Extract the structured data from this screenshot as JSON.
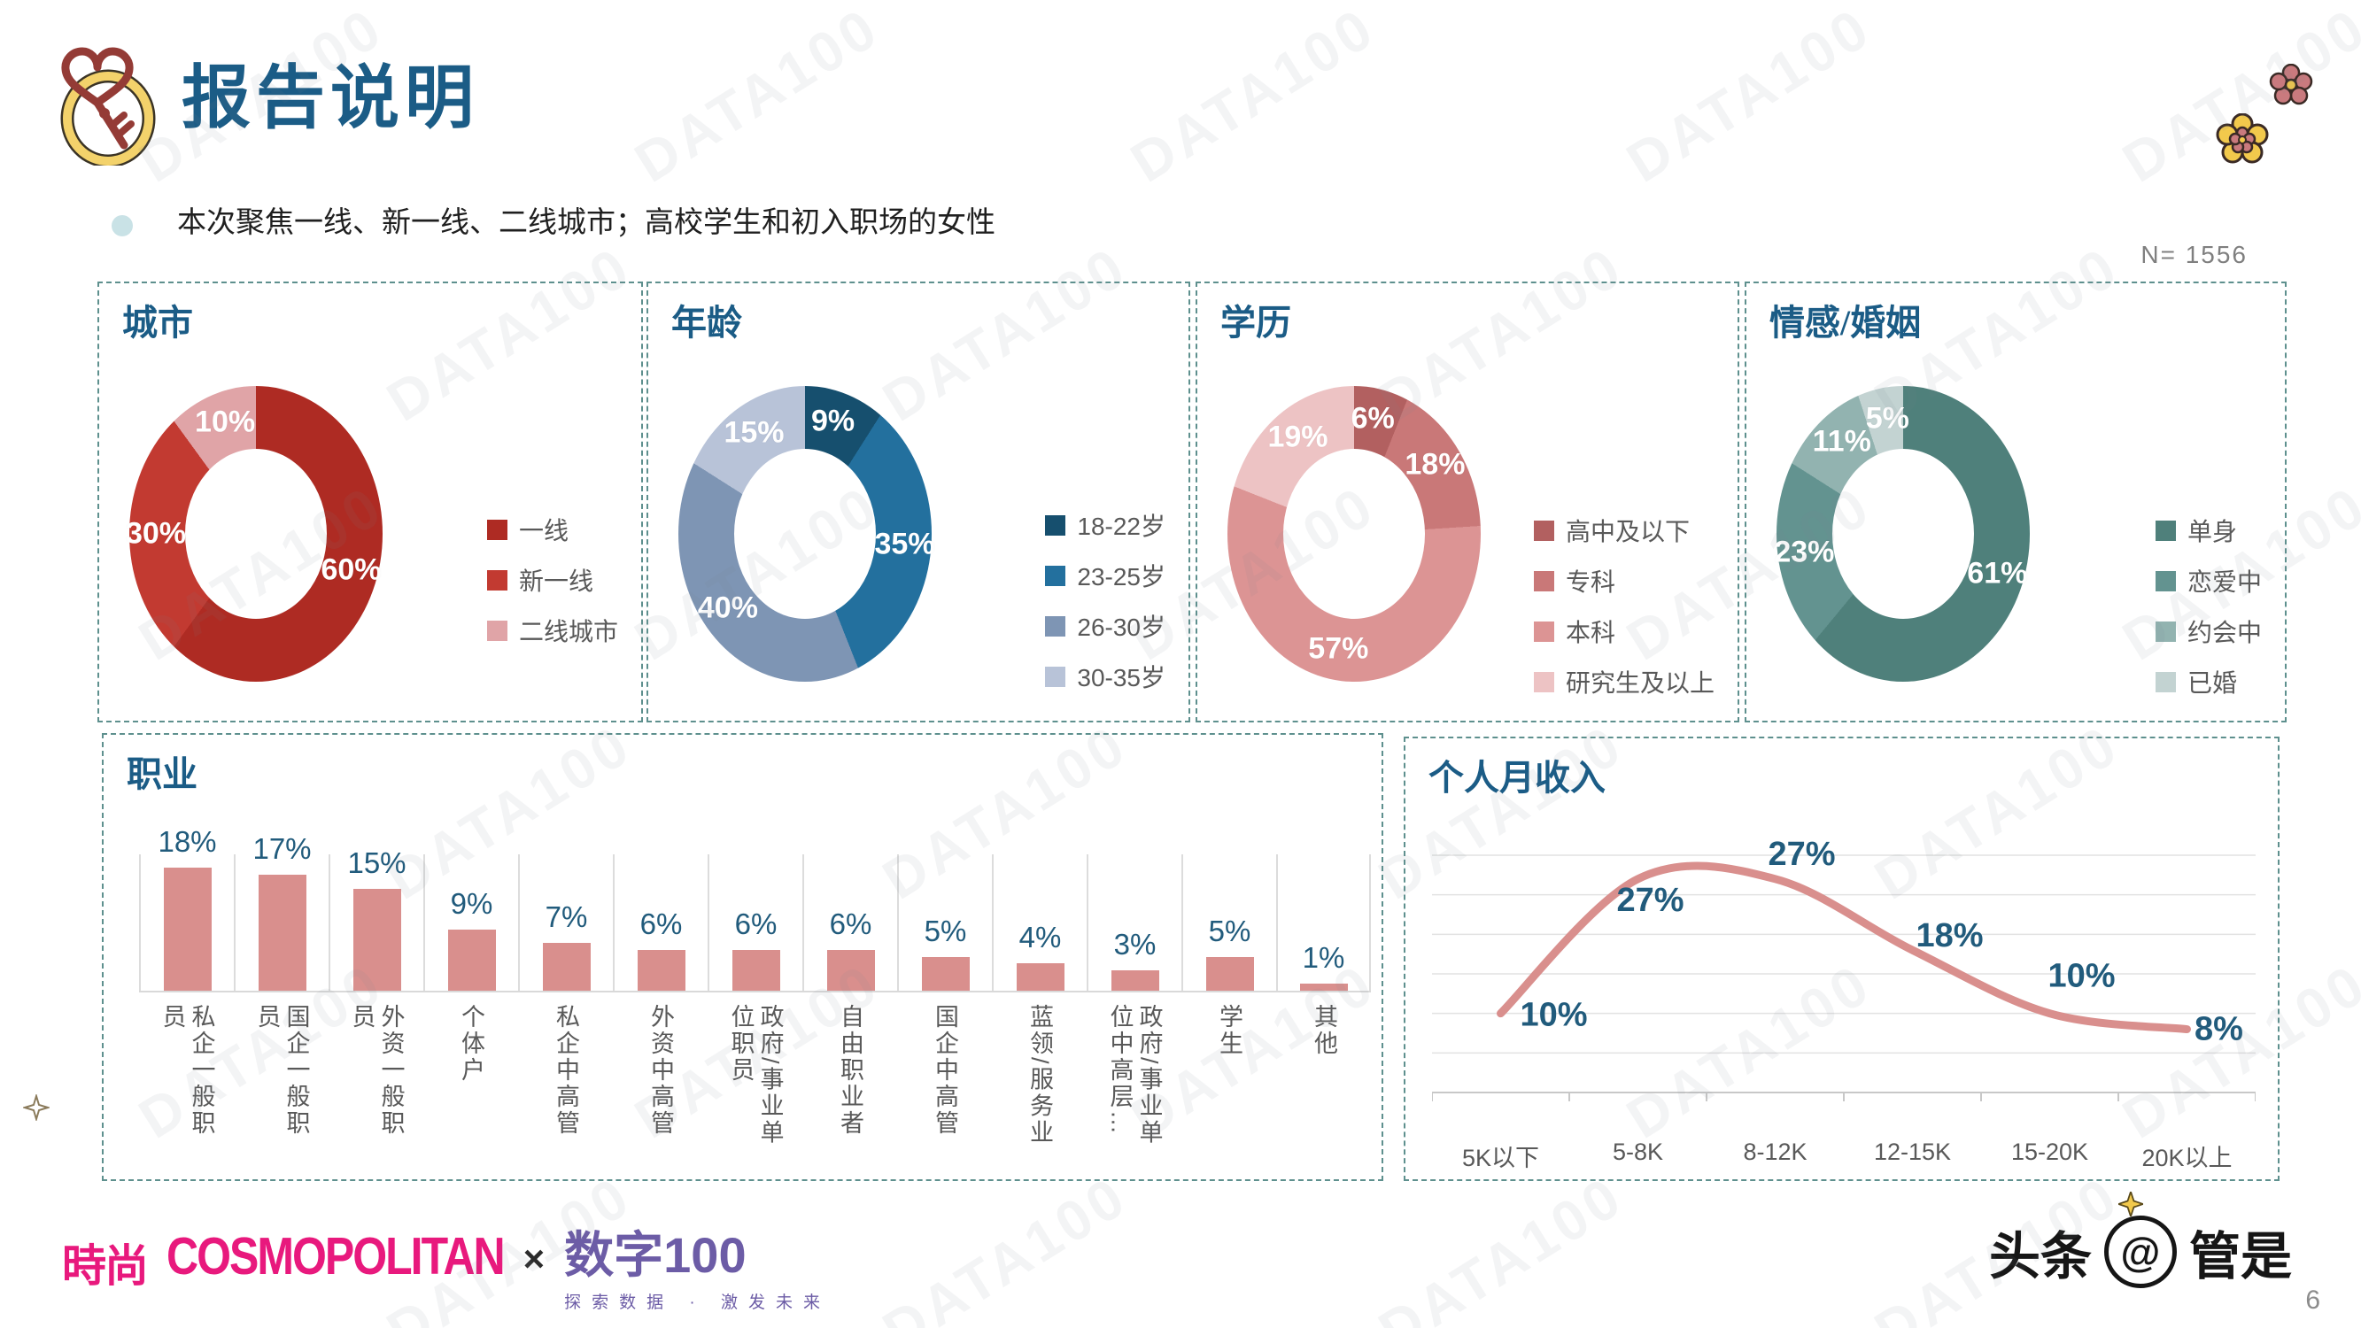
{
  "header": {
    "title": "报告说明",
    "bullet_text": "本次聚焦一线、新一线、二线城市；高校学生和初入职场的女性",
    "sample_label": "N=  1556"
  },
  "watermark_text": "DATA100",
  "theme": {
    "title_blue": "#1B5C86",
    "value_label_blue": "#215B7C",
    "border_teal": "#5E908E",
    "text_gray": "#595959",
    "brand_pink": "#E8197D",
    "brand_purple": "#6C5CA6"
  },
  "chart_data": [
    {
      "type": "pie",
      "title": "城市",
      "segments": [
        {
          "label": "一线",
          "value": 60,
          "color": "#AE2B23"
        },
        {
          "label": "新一线",
          "value": 30,
          "color": "#C23A31"
        },
        {
          "label": "二线城市",
          "value": 10,
          "color": "#E0A4A7"
        }
      ]
    },
    {
      "type": "pie",
      "title": "年龄",
      "segments": [
        {
          "label": "18-22岁",
          "value": 9,
          "color": "#164F6E"
        },
        {
          "label": "23-25岁",
          "value": 35,
          "color": "#23709E"
        },
        {
          "label": "26-30岁",
          "value": 40,
          "color": "#7E95B4"
        },
        {
          "label": "30-35岁",
          "value": 15,
          "color": "#B8C3D8"
        }
      ]
    },
    {
      "type": "pie",
      "title": "学历",
      "segments": [
        {
          "label": "高中及以下",
          "value": 6,
          "color": "#B26060"
        },
        {
          "label": "专科",
          "value": 18,
          "color": "#C97878"
        },
        {
          "label": "本科",
          "value": 57,
          "color": "#DC9494"
        },
        {
          "label": "研究生及以上",
          "value": 19,
          "color": "#EDC3C4"
        }
      ]
    },
    {
      "type": "pie",
      "title": "情感/婚姻",
      "segments": [
        {
          "label": "单身",
          "value": 61,
          "color": "#4F807B"
        },
        {
          "label": "恋爱中",
          "value": 23,
          "color": "#639390"
        },
        {
          "label": "约会中",
          "value": 11,
          "color": "#92B3B0"
        },
        {
          "label": "已婚",
          "value": 5,
          "color": "#C3D3D2"
        }
      ]
    },
    {
      "type": "bar",
      "title": "职业",
      "categories": [
        "私企一般职员",
        "国企一般职员",
        "外资一般职员",
        "个体户",
        "私企中高管",
        "外资中高管",
        "政府/事业单位职员",
        "自由职业者",
        "国企中高管",
        "蓝领/服务业",
        "政府/事业单位中高层…",
        "学生",
        "其他"
      ],
      "values": [
        18,
        17,
        15,
        9,
        7,
        6,
        6,
        6,
        5,
        4,
        3,
        5,
        1
      ],
      "unit": "%",
      "bar_color": "#D98F8D",
      "label_color": "#215B7C",
      "ylim": [
        0,
        20
      ],
      "grid": "vertical"
    },
    {
      "type": "line",
      "title": "个人月收入",
      "categories": [
        "5K以下",
        "5-8K",
        "8-12K",
        "12-15K",
        "15-20K",
        "20K以上"
      ],
      "values": [
        10,
        27,
        27,
        18,
        10,
        8
      ],
      "unit": "%",
      "line_color": "#D98F8D",
      "label_color": "#215B7C",
      "ylim": [
        0,
        30
      ],
      "y_gridlines": 7,
      "grid": "horizontal"
    }
  ],
  "footer": {
    "brand_cn": "時尚",
    "brand_en": "COSMOPOLITAN",
    "brand_sep": "×",
    "brand_right": "数字100",
    "brand_tagline": "探索数据 · 激发未来",
    "credit_left": "头条",
    "credit_at": "@",
    "credit_handle": "管是"
  },
  "page_number": "6"
}
